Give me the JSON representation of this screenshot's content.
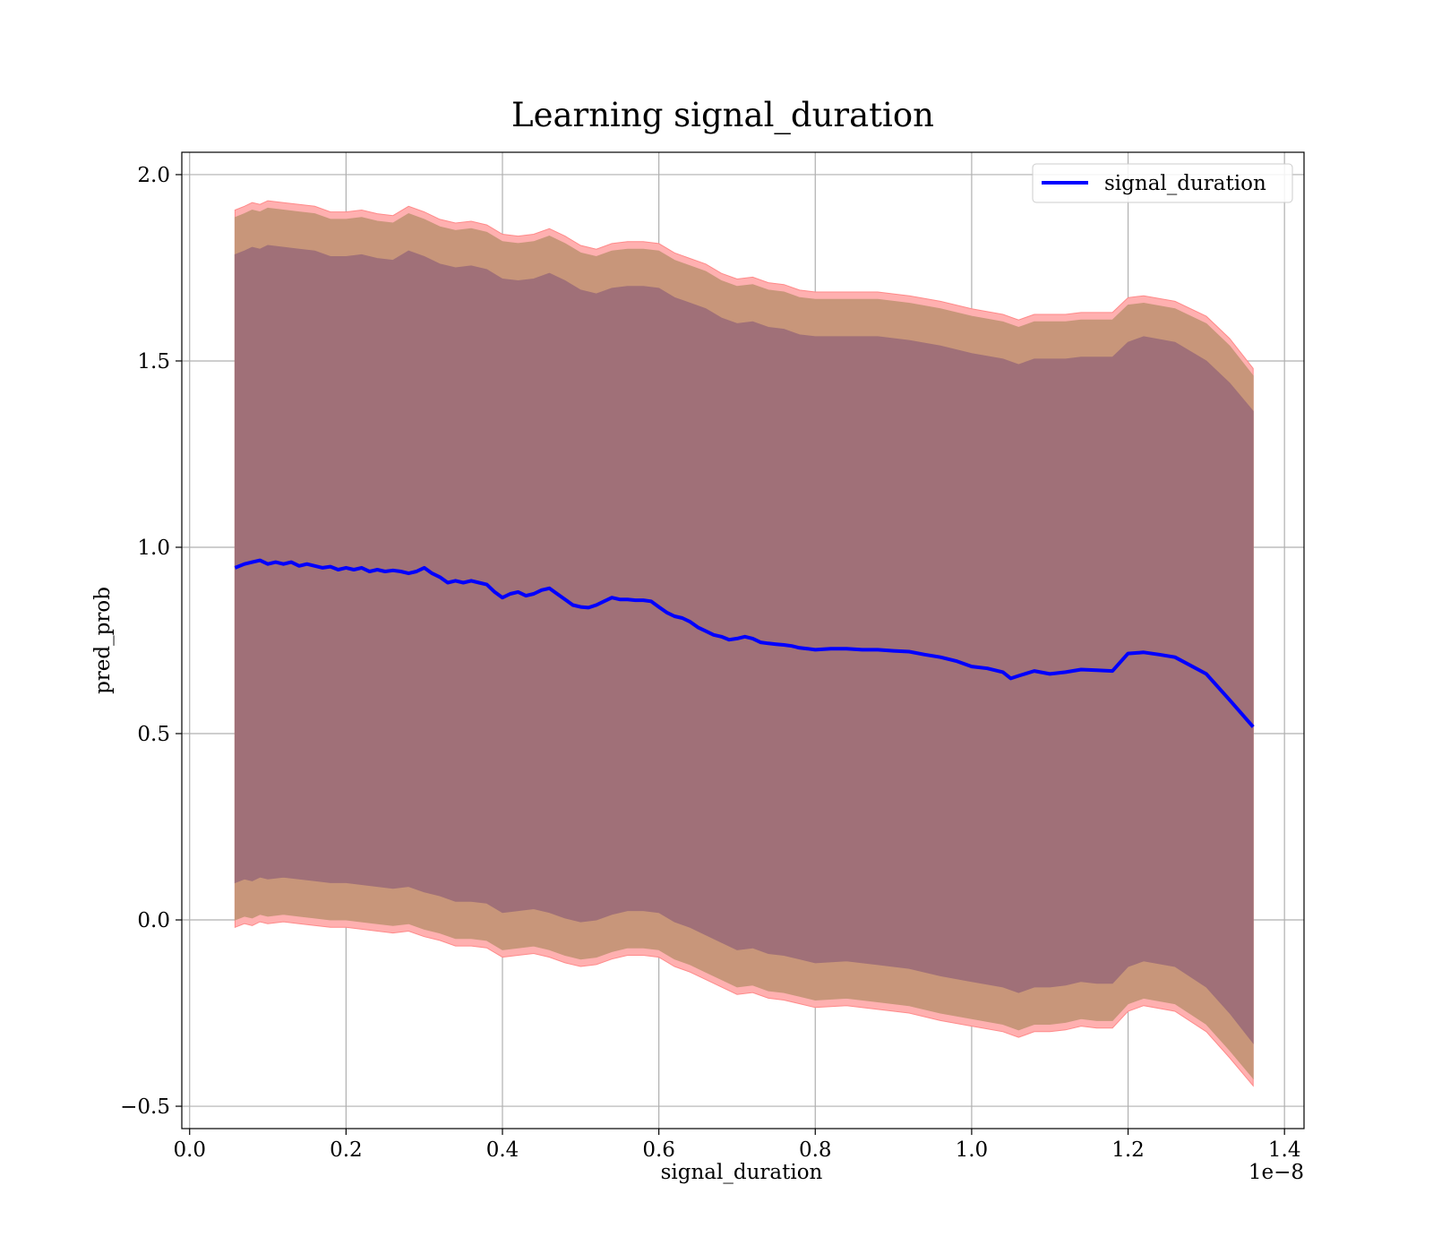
{
  "chart_data": {
    "type": "line",
    "title": "Learning signal_duration",
    "xlabel": "signal_duration",
    "ylabel": "pred_prob",
    "x_offset_text": "1e−8",
    "xlim": [
      -0.01,
      1.425
    ],
    "ylim": [
      -0.56,
      2.06
    ],
    "x_ticks": [
      0.0,
      0.2,
      0.4,
      0.6,
      0.8,
      1.0,
      1.2,
      1.4
    ],
    "x_tick_labels": [
      "0.0",
      "0.2",
      "0.4",
      "0.6",
      "0.8",
      "1.0",
      "1.2",
      "1.4"
    ],
    "y_ticks": [
      -0.5,
      0.0,
      0.5,
      1.0,
      1.5,
      2.0
    ],
    "y_tick_labels": [
      "−0.5",
      "0.0",
      "0.5",
      "1.0",
      "1.5",
      "2.0"
    ],
    "grid": true,
    "legend_position": "top-right",
    "colors": {
      "line": "#0000ff",
      "inner_band": "#a07078",
      "middle_band": "#c8967a",
      "outer_band": "#ffb0b0",
      "outer_band_edge": "#ff8a8a"
    },
    "series": [
      {
        "name": "signal_duration",
        "x": [
          0.058,
          0.07,
          0.08,
          0.09,
          0.1,
          0.11,
          0.12,
          0.13,
          0.14,
          0.15,
          0.16,
          0.17,
          0.18,
          0.19,
          0.2,
          0.21,
          0.22,
          0.23,
          0.24,
          0.25,
          0.26,
          0.27,
          0.28,
          0.29,
          0.3,
          0.31,
          0.32,
          0.33,
          0.34,
          0.35,
          0.36,
          0.37,
          0.38,
          0.39,
          0.4,
          0.41,
          0.42,
          0.43,
          0.44,
          0.45,
          0.46,
          0.47,
          0.48,
          0.49,
          0.5,
          0.51,
          0.52,
          0.53,
          0.54,
          0.55,
          0.56,
          0.57,
          0.58,
          0.59,
          0.6,
          0.61,
          0.62,
          0.63,
          0.64,
          0.65,
          0.66,
          0.67,
          0.68,
          0.69,
          0.7,
          0.71,
          0.72,
          0.73,
          0.74,
          0.75,
          0.76,
          0.77,
          0.78,
          0.79,
          0.8,
          0.82,
          0.84,
          0.86,
          0.88,
          0.9,
          0.92,
          0.94,
          0.96,
          0.98,
          1.0,
          1.02,
          1.04,
          1.05,
          1.06,
          1.08,
          1.1,
          1.12,
          1.14,
          1.16,
          1.18,
          1.2,
          1.22,
          1.24,
          1.26,
          1.3,
          1.33,
          1.36
        ],
        "y": [
          0.945,
          0.955,
          0.96,
          0.965,
          0.955,
          0.96,
          0.955,
          0.96,
          0.95,
          0.955,
          0.95,
          0.945,
          0.948,
          0.94,
          0.945,
          0.94,
          0.945,
          0.935,
          0.94,
          0.935,
          0.938,
          0.935,
          0.93,
          0.935,
          0.945,
          0.93,
          0.92,
          0.905,
          0.91,
          0.905,
          0.91,
          0.905,
          0.9,
          0.88,
          0.865,
          0.875,
          0.88,
          0.87,
          0.875,
          0.885,
          0.89,
          0.875,
          0.86,
          0.845,
          0.84,
          0.838,
          0.845,
          0.855,
          0.865,
          0.86,
          0.86,
          0.858,
          0.858,
          0.855,
          0.84,
          0.825,
          0.815,
          0.81,
          0.8,
          0.785,
          0.775,
          0.765,
          0.76,
          0.752,
          0.755,
          0.76,
          0.755,
          0.745,
          0.742,
          0.74,
          0.738,
          0.735,
          0.73,
          0.728,
          0.725,
          0.728,
          0.728,
          0.725,
          0.725,
          0.722,
          0.72,
          0.712,
          0.705,
          0.695,
          0.68,
          0.675,
          0.665,
          0.648,
          0.655,
          0.668,
          0.66,
          0.665,
          0.672,
          0.67,
          0.668,
          0.715,
          0.718,
          0.712,
          0.705,
          0.66,
          0.59,
          0.518
        ]
      }
    ],
    "bands": [
      {
        "label": "outer",
        "x": [
          0.058,
          0.07,
          0.08,
          0.09,
          0.1,
          0.12,
          0.14,
          0.16,
          0.18,
          0.2,
          0.22,
          0.24,
          0.26,
          0.28,
          0.3,
          0.32,
          0.34,
          0.36,
          0.38,
          0.4,
          0.42,
          0.44,
          0.46,
          0.48,
          0.5,
          0.52,
          0.54,
          0.56,
          0.58,
          0.6,
          0.62,
          0.64,
          0.66,
          0.68,
          0.7,
          0.72,
          0.74,
          0.76,
          0.78,
          0.8,
          0.84,
          0.88,
          0.92,
          0.96,
          1.0,
          1.04,
          1.06,
          1.08,
          1.1,
          1.12,
          1.14,
          1.16,
          1.18,
          1.2,
          1.22,
          1.26,
          1.3,
          1.33,
          1.36
        ],
        "upper": [
          1.905,
          1.915,
          1.925,
          1.92,
          1.93,
          1.925,
          1.92,
          1.915,
          1.9,
          1.9,
          1.905,
          1.895,
          1.89,
          1.915,
          1.9,
          1.88,
          1.87,
          1.875,
          1.865,
          1.84,
          1.835,
          1.84,
          1.855,
          1.835,
          1.81,
          1.8,
          1.815,
          1.82,
          1.82,
          1.815,
          1.79,
          1.775,
          1.76,
          1.735,
          1.72,
          1.725,
          1.71,
          1.705,
          1.69,
          1.685,
          1.685,
          1.685,
          1.675,
          1.66,
          1.64,
          1.625,
          1.61,
          1.625,
          1.625,
          1.625,
          1.63,
          1.63,
          1.63,
          1.67,
          1.675,
          1.66,
          1.62,
          1.56,
          1.48
        ],
        "lower": [
          -0.02,
          -0.01,
          -0.015,
          -0.005,
          -0.01,
          -0.005,
          -0.01,
          -0.015,
          -0.02,
          -0.02,
          -0.025,
          -0.03,
          -0.035,
          -0.03,
          -0.045,
          -0.055,
          -0.07,
          -0.07,
          -0.075,
          -0.1,
          -0.095,
          -0.09,
          -0.1,
          -0.115,
          -0.125,
          -0.12,
          -0.105,
          -0.095,
          -0.095,
          -0.1,
          -0.125,
          -0.14,
          -0.16,
          -0.18,
          -0.2,
          -0.195,
          -0.21,
          -0.215,
          -0.225,
          -0.235,
          -0.23,
          -0.24,
          -0.25,
          -0.27,
          -0.285,
          -0.3,
          -0.315,
          -0.3,
          -0.3,
          -0.295,
          -0.285,
          -0.29,
          -0.29,
          -0.245,
          -0.23,
          -0.245,
          -0.3,
          -0.37,
          -0.445
        ]
      },
      {
        "label": "middle",
        "x": [
          0.058,
          0.07,
          0.08,
          0.09,
          0.1,
          0.12,
          0.14,
          0.16,
          0.18,
          0.2,
          0.22,
          0.24,
          0.26,
          0.28,
          0.3,
          0.32,
          0.34,
          0.36,
          0.38,
          0.4,
          0.42,
          0.44,
          0.46,
          0.48,
          0.5,
          0.52,
          0.54,
          0.56,
          0.58,
          0.6,
          0.62,
          0.64,
          0.66,
          0.68,
          0.7,
          0.72,
          0.74,
          0.76,
          0.78,
          0.8,
          0.84,
          0.88,
          0.92,
          0.96,
          1.0,
          1.04,
          1.06,
          1.08,
          1.1,
          1.12,
          1.14,
          1.16,
          1.18,
          1.2,
          1.22,
          1.26,
          1.3,
          1.33,
          1.36
        ],
        "upper": [
          1.885,
          1.895,
          1.905,
          1.9,
          1.91,
          1.905,
          1.9,
          1.895,
          1.88,
          1.88,
          1.885,
          1.875,
          1.87,
          1.895,
          1.88,
          1.86,
          1.85,
          1.855,
          1.845,
          1.82,
          1.815,
          1.82,
          1.835,
          1.815,
          1.79,
          1.78,
          1.795,
          1.8,
          1.8,
          1.795,
          1.77,
          1.755,
          1.74,
          1.715,
          1.7,
          1.705,
          1.69,
          1.685,
          1.67,
          1.665,
          1.665,
          1.665,
          1.655,
          1.64,
          1.62,
          1.605,
          1.59,
          1.605,
          1.605,
          1.605,
          1.61,
          1.61,
          1.61,
          1.65,
          1.655,
          1.64,
          1.6,
          1.54,
          1.46
        ],
        "lower": [
          0.0,
          0.01,
          0.005,
          0.015,
          0.01,
          0.015,
          0.01,
          0.005,
          0.0,
          0.0,
          -0.005,
          -0.01,
          -0.015,
          -0.01,
          -0.025,
          -0.035,
          -0.05,
          -0.05,
          -0.055,
          -0.08,
          -0.075,
          -0.07,
          -0.08,
          -0.095,
          -0.105,
          -0.1,
          -0.085,
          -0.075,
          -0.075,
          -0.08,
          -0.105,
          -0.12,
          -0.14,
          -0.16,
          -0.18,
          -0.175,
          -0.19,
          -0.195,
          -0.205,
          -0.215,
          -0.21,
          -0.22,
          -0.23,
          -0.25,
          -0.265,
          -0.28,
          -0.295,
          -0.28,
          -0.28,
          -0.275,
          -0.265,
          -0.27,
          -0.27,
          -0.225,
          -0.21,
          -0.225,
          -0.28,
          -0.35,
          -0.425
        ]
      },
      {
        "label": "inner",
        "x": [
          0.058,
          0.07,
          0.08,
          0.09,
          0.1,
          0.12,
          0.14,
          0.16,
          0.18,
          0.2,
          0.22,
          0.24,
          0.26,
          0.28,
          0.3,
          0.32,
          0.34,
          0.36,
          0.38,
          0.4,
          0.42,
          0.44,
          0.46,
          0.48,
          0.5,
          0.52,
          0.54,
          0.56,
          0.58,
          0.6,
          0.62,
          0.64,
          0.66,
          0.68,
          0.7,
          0.72,
          0.74,
          0.76,
          0.78,
          0.8,
          0.84,
          0.88,
          0.92,
          0.96,
          1.0,
          1.04,
          1.06,
          1.08,
          1.1,
          1.12,
          1.14,
          1.16,
          1.18,
          1.2,
          1.22,
          1.26,
          1.3,
          1.33,
          1.36
        ],
        "upper": [
          1.785,
          1.795,
          1.805,
          1.8,
          1.81,
          1.805,
          1.8,
          1.795,
          1.78,
          1.78,
          1.785,
          1.775,
          1.77,
          1.795,
          1.78,
          1.76,
          1.75,
          1.755,
          1.745,
          1.72,
          1.715,
          1.72,
          1.735,
          1.715,
          1.69,
          1.68,
          1.695,
          1.7,
          1.7,
          1.695,
          1.67,
          1.655,
          1.64,
          1.615,
          1.6,
          1.605,
          1.59,
          1.585,
          1.57,
          1.565,
          1.565,
          1.565,
          1.555,
          1.54,
          1.52,
          1.505,
          1.49,
          1.505,
          1.505,
          1.505,
          1.51,
          1.51,
          1.51,
          1.55,
          1.565,
          1.55,
          1.5,
          1.44,
          1.365
        ],
        "lower": [
          0.1,
          0.11,
          0.105,
          0.115,
          0.11,
          0.115,
          0.11,
          0.105,
          0.1,
          0.1,
          0.095,
          0.09,
          0.085,
          0.09,
          0.075,
          0.065,
          0.05,
          0.05,
          0.045,
          0.02,
          0.025,
          0.03,
          0.02,
          0.005,
          -0.005,
          0.0,
          0.015,
          0.025,
          0.025,
          0.02,
          -0.005,
          -0.02,
          -0.04,
          -0.06,
          -0.08,
          -0.075,
          -0.09,
          -0.095,
          -0.105,
          -0.115,
          -0.11,
          -0.12,
          -0.13,
          -0.15,
          -0.165,
          -0.18,
          -0.195,
          -0.18,
          -0.18,
          -0.175,
          -0.165,
          -0.17,
          -0.17,
          -0.125,
          -0.11,
          -0.125,
          -0.18,
          -0.25,
          -0.33
        ]
      }
    ]
  }
}
